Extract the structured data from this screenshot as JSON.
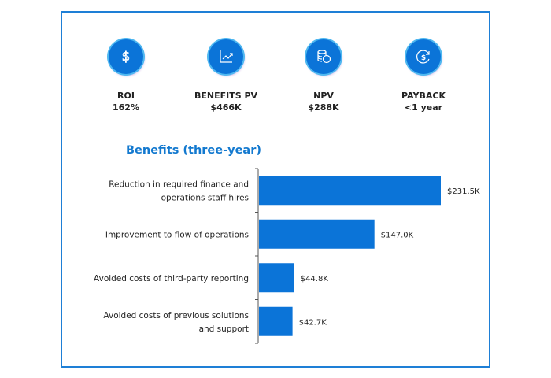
{
  "metrics": [
    {
      "icon": "dollar-icon",
      "label": "ROI",
      "value": "162%"
    },
    {
      "icon": "trend-chart-icon",
      "label": "BENEFITS PV",
      "value": "$466K"
    },
    {
      "icon": "coins-icon",
      "label": "NPV",
      "value": "$288K"
    },
    {
      "icon": "payback-cycle-icon",
      "label": "PAYBACK",
      "value": "<1 year"
    }
  ],
  "colors": {
    "accent": "#0b74d8",
    "border": "#1e7fd6",
    "title": "#1379cf"
  },
  "chart_data": {
    "type": "bar",
    "orientation": "horizontal",
    "title": "Benefits (three-year)",
    "categories": [
      [
        "Reduction in required finance and",
        "operations staff hires"
      ],
      [
        "Improvement to flow of operations"
      ],
      [
        "Avoided costs of third-party reporting"
      ],
      [
        "Avoided costs of previous solutions",
        "and support"
      ]
    ],
    "values": [
      231.5,
      147.0,
      44.8,
      42.7
    ],
    "data_labels": [
      "$231.5K",
      "$147.0K",
      "$44.8K",
      "$42.7K"
    ],
    "unit": "$K",
    "xlim": [
      0,
      231.5
    ],
    "grid": false
  }
}
